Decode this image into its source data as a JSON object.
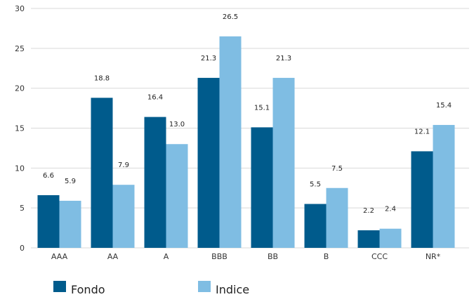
{
  "chart_data": {
    "type": "bar",
    "categories": [
      "AAA",
      "AA",
      "A",
      "BBB",
      "BB",
      "B",
      "CCC",
      "NR*"
    ],
    "series": [
      {
        "name": "Fondo",
        "values": [
          6.6,
          18.8,
          16.4,
          21.3,
          15.1,
          5.5,
          2.2,
          12.1
        ],
        "labels": [
          "6.6",
          "18.8",
          "16.4",
          "21.3",
          "15.1",
          "5.5",
          "2.2",
          "12.1"
        ],
        "color": "#005b8c"
      },
      {
        "name": "Indice",
        "values": [
          5.9,
          7.9,
          13.0,
          26.5,
          21.3,
          7.5,
          2.4,
          15.4
        ],
        "labels": [
          "5.9",
          "7.9",
          "13.0",
          "26.5",
          "21.3",
          "7.5",
          "2.4",
          "15.4"
        ],
        "color": "#7fbde3"
      }
    ],
    "ylim": [
      0,
      30
    ],
    "yticks": [
      0,
      5,
      10,
      15,
      20,
      25,
      30
    ],
    "ytick_labels": [
      "0",
      "5",
      "10",
      "15",
      "20",
      "25",
      "30"
    ],
    "grid": true,
    "legend_position": "bottom-left",
    "gridline_color": "#d9d9d9"
  }
}
